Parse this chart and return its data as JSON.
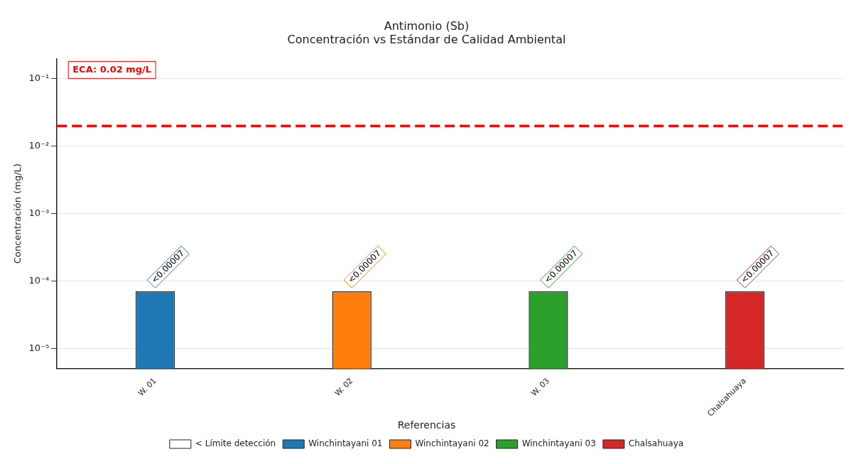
{
  "chart_data": {
    "type": "bar",
    "title": "Antimonio (Sb)",
    "subtitle": "Concentración vs Estándar de Calidad Ambiental",
    "ylabel": "Concentración (mg/L)",
    "legend_title": "Referencias",
    "categories": [
      "W. 01",
      "W. 02",
      "W. 03",
      "Chalsahuaya"
    ],
    "series": [
      {
        "name": "< Límite detección",
        "color": "#ffffff",
        "values": [
          null,
          null,
          null,
          null
        ]
      },
      {
        "name": "Winchintayani 01",
        "color": "#1f77b4",
        "values": [
          7e-05,
          null,
          null,
          null
        ],
        "value_labels": [
          "<0.00007",
          null,
          null,
          null
        ]
      },
      {
        "name": "Winchintayani 02",
        "color": "#ff7f0e",
        "values": [
          null,
          7e-05,
          null,
          null
        ],
        "value_labels": [
          null,
          "<0.00007",
          null,
          null
        ]
      },
      {
        "name": "Winchintayani 03",
        "color": "#2ca02c",
        "values": [
          null,
          null,
          7e-05,
          null
        ],
        "value_labels": [
          null,
          null,
          "<0.00007",
          null
        ]
      },
      {
        "name": "Chalsahuaya",
        "color": "#d62728",
        "values": [
          null,
          null,
          null,
          7e-05
        ],
        "value_labels": [
          null,
          null,
          null,
          "<0.00007"
        ]
      }
    ],
    "log": "y",
    "ylim": [
      5e-06,
      0.2
    ],
    "yticks": [
      {
        "value": 1e-05,
        "label": "10⁻⁵"
      },
      {
        "value": 0.0001,
        "label": "10⁻⁴"
      },
      {
        "value": 0.001,
        "label": "10⁻³"
      },
      {
        "value": 0.01,
        "label": "10⁻²"
      },
      {
        "value": 0.1,
        "label": "10⁻¹"
      }
    ],
    "ref_lines": [
      {
        "axis": "y",
        "value": 0.02,
        "label": "ECA: 0.02 mg/L",
        "color": "#ff0000",
        "line_style": "dashed"
      }
    ],
    "grid": "y",
    "legend": "bottom"
  }
}
